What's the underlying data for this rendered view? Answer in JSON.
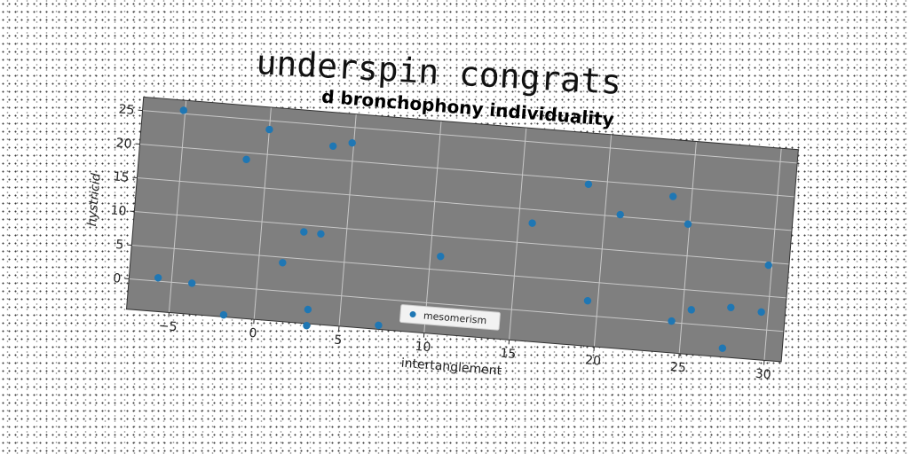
{
  "chart_data": {
    "type": "scatter",
    "title": "underspin congrats",
    "subtitle": "d bronchophony individuality",
    "xlabel": "intertanglement",
    "ylabel": "hystricid",
    "xlim": [
      -7.5,
      31
    ],
    "ylim": [
      -4.5,
      27
    ],
    "xticks": [
      -5,
      0,
      5,
      10,
      15,
      20,
      25,
      30
    ],
    "yticks": [
      0,
      5,
      10,
      15,
      20,
      25
    ],
    "grid": true,
    "legend_position": "lower-center",
    "colors": {
      "plot_background": "#7f7f7f",
      "marker": "#1f77b4",
      "grid": "#c8c8c8"
    },
    "series": [
      {
        "name": "mesomerism",
        "x": [
          -5.8,
          -5.1,
          -3.8,
          -1.8,
          -1.2,
          0.0,
          1.4,
          2.5,
          3.1,
          3.1,
          3.5,
          3.8,
          4.9,
          7.3,
          10.6,
          15.8,
          18.9,
          19.4,
          20.9,
          23.9,
          24.4,
          24.9,
          25.5,
          27.5,
          27.8,
          29.6,
          29.8
        ],
        "y": [
          0.5,
          25.5,
          0.1,
          -4.2,
          19.0,
          23.7,
          4.2,
          9.0,
          -4.8,
          -2.4,
          8.9,
          22.0,
          22.7,
          -3.9,
          7.0,
          13.0,
          19.4,
          2.2,
          15.3,
          18.6,
          0.2,
          14.7,
          2.1,
          -3.2,
          2.9,
          2.6,
          9.6
        ]
      }
    ]
  }
}
